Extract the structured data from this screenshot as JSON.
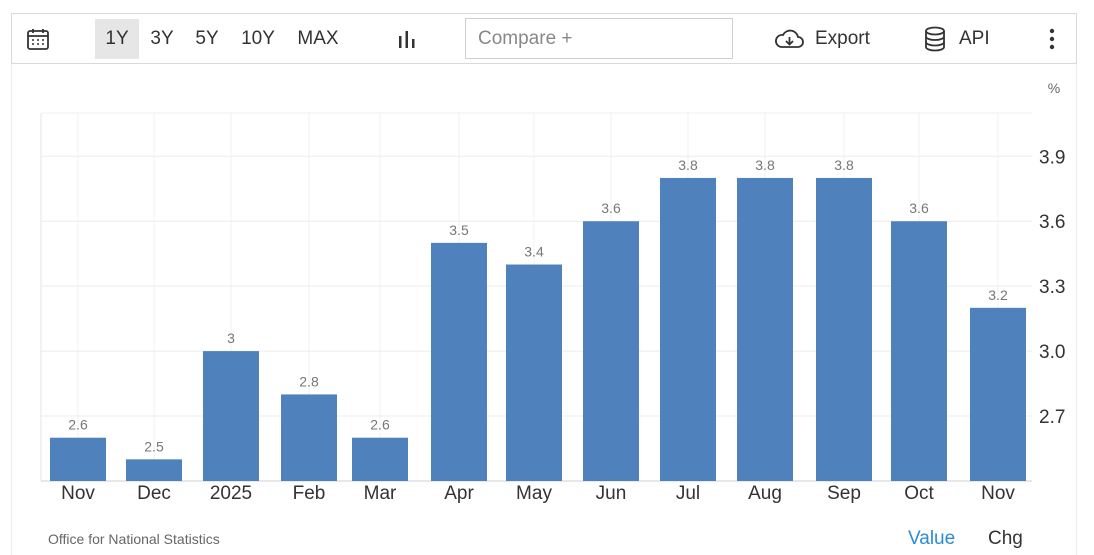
{
  "toolbar": {
    "calendar_icon": "calendar-icon",
    "ranges": [
      "1Y",
      "3Y",
      "5Y",
      "10Y",
      "MAX"
    ],
    "active_range": "1Y",
    "chart_type_icon": "bar-chart-icon",
    "compare_placeholder": "Compare +",
    "export_label": "Export",
    "export_icon": "cloud-download-icon",
    "api_label": "API",
    "api_icon": "database-icon",
    "more_icon": "vertical-dots-icon"
  },
  "chart_data": {
    "type": "bar",
    "unit": "%",
    "categories": [
      "Nov",
      "Dec",
      "2025",
      "Feb",
      "Mar",
      "Apr",
      "May",
      "Jun",
      "Jul",
      "Aug",
      "Sep",
      "Oct",
      "Nov"
    ],
    "values": [
      2.6,
      2.5,
      3.0,
      2.8,
      2.6,
      3.5,
      3.4,
      3.6,
      3.8,
      3.8,
      3.8,
      3.6,
      3.2
    ],
    "value_labels": [
      "2.6",
      "2.5",
      "3",
      "2.8",
      "2.6",
      "3.5",
      "3.4",
      "3.6",
      "3.8",
      "3.8",
      "3.8",
      "3.6",
      "3.2"
    ],
    "ylim": [
      2.4,
      4.1
    ],
    "yticks": [
      2.7,
      3.0,
      3.3,
      3.6,
      3.9
    ],
    "ytick_labels": [
      "2.7",
      "3.0",
      "3.3",
      "3.6",
      "3.9"
    ],
    "y_axis_side": "right",
    "grid": true,
    "bar_color": "#4f81bd"
  },
  "footer": {
    "source": "Office for National Statistics",
    "value_tab": "Value",
    "chg_tab": "Chg",
    "value_color": "#2a8bd6"
  }
}
